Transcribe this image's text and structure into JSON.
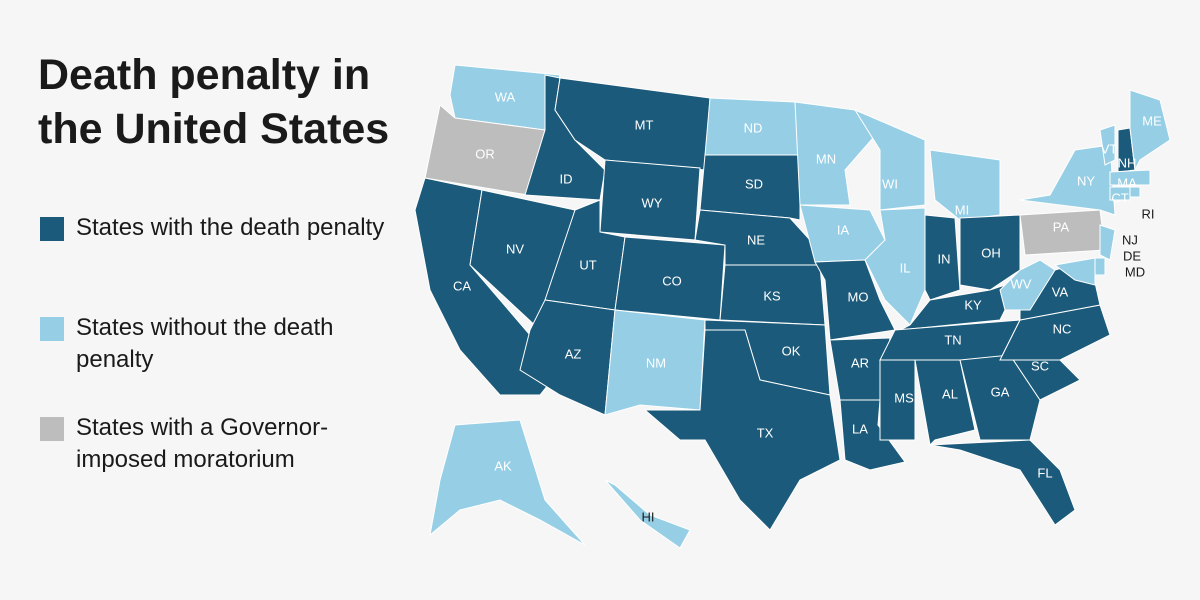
{
  "title": "Death penalty in the United States",
  "legend": [
    {
      "label": "States with the death penalty",
      "color": "#1b5a7a"
    },
    {
      "label": "States without the death penalty",
      "color": "#96cfe5"
    },
    {
      "label": "States with a Governor-imposed moratorium",
      "color": "#bdbdbd"
    }
  ],
  "states": [
    {
      "label": "WA",
      "color": "#96cfe5"
    },
    {
      "label": "OR",
      "color": "#bdbdbd"
    },
    {
      "label": "CA",
      "color": "#1b5a7a"
    },
    {
      "label": "ID",
      "color": "#1b5a7a"
    },
    {
      "label": "NV",
      "color": "#1b5a7a"
    },
    {
      "label": "MT",
      "color": "#1b5a7a"
    },
    {
      "label": "WY",
      "color": "#1b5a7a"
    },
    {
      "label": "UT",
      "color": "#1b5a7a"
    },
    {
      "label": "AZ",
      "color": "#1b5a7a"
    },
    {
      "label": "CO",
      "color": "#1b5a7a"
    },
    {
      "label": "NM",
      "color": "#96cfe5"
    },
    {
      "label": "ND",
      "color": "#96cfe5"
    },
    {
      "label": "SD",
      "color": "#1b5a7a"
    },
    {
      "label": "NE",
      "color": "#1b5a7a"
    },
    {
      "label": "KS",
      "color": "#1b5a7a"
    },
    {
      "label": "OK",
      "color": "#1b5a7a"
    },
    {
      "label": "TX",
      "color": "#1b5a7a"
    },
    {
      "label": "MN",
      "color": "#96cfe5"
    },
    {
      "label": "IA",
      "color": "#96cfe5"
    },
    {
      "label": "MO",
      "color": "#1b5a7a"
    },
    {
      "label": "AR",
      "color": "#1b5a7a"
    },
    {
      "label": "LA",
      "color": "#1b5a7a"
    },
    {
      "label": "WI",
      "color": "#96cfe5"
    },
    {
      "label": "IL",
      "color": "#96cfe5"
    },
    {
      "label": "MI",
      "color": "#96cfe5"
    },
    {
      "label": "IN",
      "color": "#1b5a7a"
    },
    {
      "label": "OH",
      "color": "#1b5a7a"
    },
    {
      "label": "KY",
      "color": "#1b5a7a"
    },
    {
      "label": "TN",
      "color": "#1b5a7a"
    },
    {
      "label": "MS",
      "color": "#1b5a7a"
    },
    {
      "label": "AL",
      "color": "#1b5a7a"
    },
    {
      "label": "GA",
      "color": "#1b5a7a"
    },
    {
      "label": "FL",
      "color": "#1b5a7a"
    },
    {
      "label": "SC",
      "color": "#1b5a7a"
    },
    {
      "label": "NC",
      "color": "#1b5a7a"
    },
    {
      "label": "VA",
      "color": "#1b5a7a"
    },
    {
      "label": "WV",
      "color": "#96cfe5"
    },
    {
      "label": "PA",
      "color": "#bdbdbd"
    },
    {
      "label": "NY",
      "color": "#96cfe5"
    },
    {
      "label": "VT",
      "color": "#96cfe5"
    },
    {
      "label": "NH",
      "color": "#1b5a7a"
    },
    {
      "label": "ME",
      "color": "#96cfe5"
    },
    {
      "label": "MA",
      "color": "#96cfe5"
    },
    {
      "label": "CT",
      "color": "#96cfe5"
    },
    {
      "label": "RI",
      "color": "#96cfe5"
    },
    {
      "label": "NJ",
      "color": "#96cfe5"
    },
    {
      "label": "DE",
      "color": "#96cfe5"
    },
    {
      "label": "MD",
      "color": "#96cfe5"
    },
    {
      "label": "AK",
      "color": "#96cfe5"
    },
    {
      "label": "HI",
      "color": "#96cfe5"
    }
  ]
}
